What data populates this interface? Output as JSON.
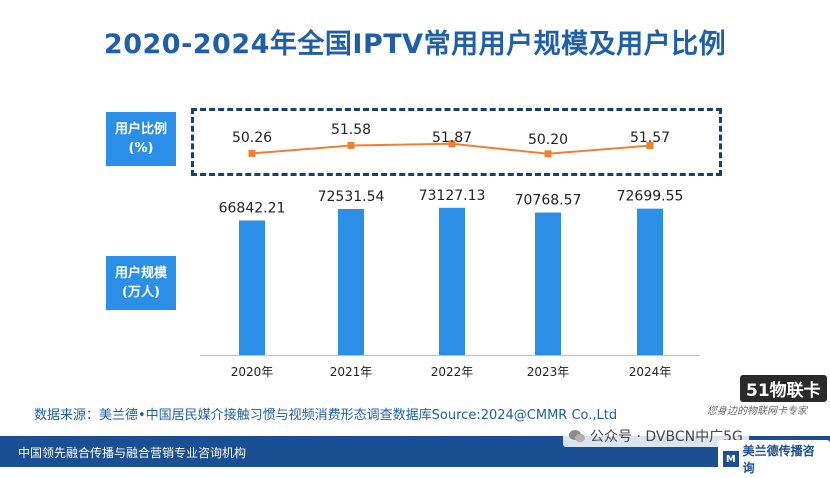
{
  "header": {
    "title": "2020-2024年全国IPTV常用用户规模及用户比例"
  },
  "labels": {
    "ratio_line1": "用户比例",
    "ratio_line2": "(%)",
    "scale_line1": "用户规模",
    "scale_line2": "(万人)"
  },
  "chart_data": {
    "type": "bar",
    "title": "2020-2024年全国IPTV常用用户规模及用户比例",
    "categories": [
      "2020年",
      "2021年",
      "2022年",
      "2023年",
      "2024年"
    ],
    "series": [
      {
        "name": "用户规模(万人)",
        "type": "bar",
        "values": [
          66842.21,
          72531.54,
          73127.13,
          70768.57,
          72699.55
        ],
        "value_labels": [
          "66842.21",
          "72531.54",
          "73127.13",
          "70768.57",
          "72699.55"
        ],
        "color": "#2b8fe8"
      },
      {
        "name": "用户比例(%)",
        "type": "line",
        "values": [
          50.26,
          51.58,
          51.87,
          50.2,
          51.57
        ],
        "value_labels": [
          "50.26",
          "51.58",
          "51.87",
          "50.20",
          "51.57"
        ],
        "color": "#ee8033"
      }
    ],
    "grid": false,
    "legend": "none"
  },
  "source": {
    "text": "数据来源：美兰德•中国居民媒介接触习惯与视频消费形态调查数据库Source:2024@CMMR Co.,Ltd"
  },
  "footer": {
    "text": "中国领先融合传播与融合营销专业咨询机构",
    "brand": "美兰德传播咨询",
    "brand_mark": "M"
  },
  "watermarks": {
    "wechat": "公众号 · DVBCN中广5G",
    "site_logo": "51物联卡",
    "site_slogan": "您身边的物联网卡专家"
  },
  "colors": {
    "title": "#1f5fa8",
    "bar": "#2b8fe8",
    "line": "#ee8033",
    "label_box": "#2b8fe8",
    "dashed_border": "#163f73",
    "footer": "#1a4f94"
  }
}
